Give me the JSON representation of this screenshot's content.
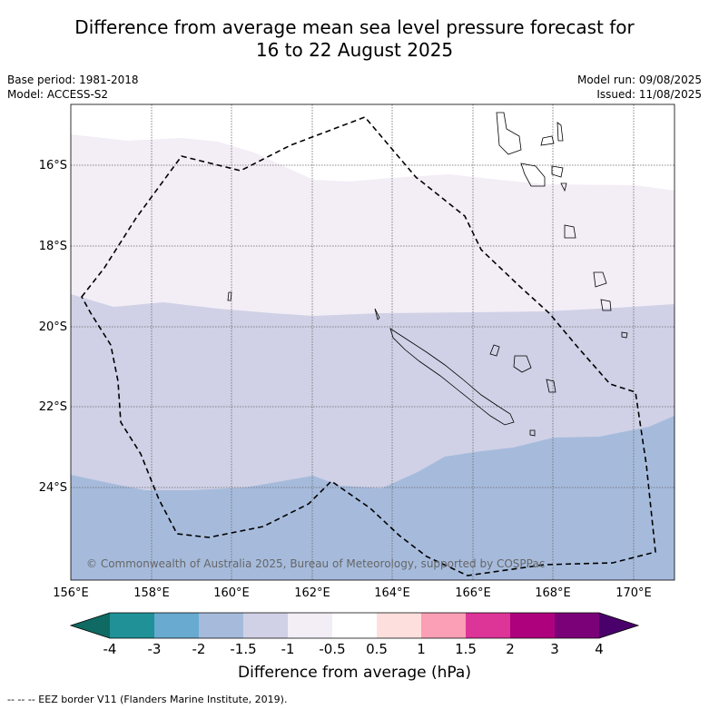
{
  "title_line1": "Difference from average mean sea level pressure forecast for",
  "title_line2": "16 to 22 August 2025",
  "base_period": "Base period: 1981-2018",
  "model": "Model: ACCESS-S2",
  "model_run": "Model run: 09/08/2025",
  "issued": "Issued: 11/08/2025",
  "copyright": "© Commonwealth of Australia 2025, Bureau of Meteorology, supported by COSPPac",
  "lat_labels": [
    "16°S",
    "18°S",
    "20°S",
    "22°S",
    "24°S"
  ],
  "lon_labels": [
    "156°E",
    "158°E",
    "160°E",
    "162°E",
    "164°E",
    "166°E",
    "168°E",
    "170°E"
  ],
  "colorbar": {
    "label": "Difference from average (hPa)",
    "ticks": [
      "-4",
      "-3",
      "-2",
      "-1.5",
      "-1",
      "-0.5",
      "0.5",
      "1",
      "1.5",
      "2",
      "3",
      "4"
    ],
    "colors": [
      "#0f6a63",
      "#1f9197",
      "#68aad0",
      "#a6bbdc",
      "#d0d1e6",
      "#f3edf6",
      "#ffffff",
      "#fde0dd",
      "#fa9fb5",
      "#dd3497",
      "#ae017e",
      "#7a0177",
      "#49006a"
    ]
  },
  "footer": "--  --  -- EEZ border V11 (Flanders Marine Institute, 2019)."
}
